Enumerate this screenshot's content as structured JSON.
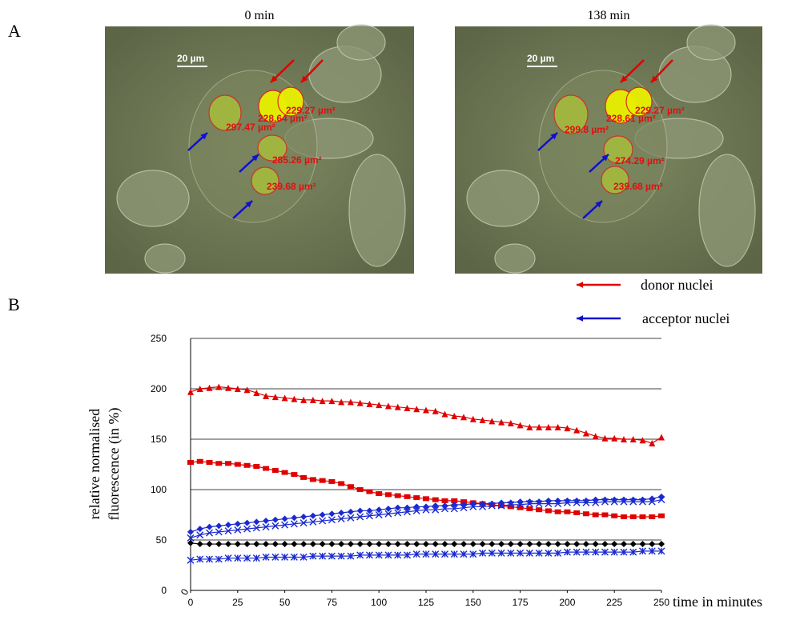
{
  "panel_labels": [
    "A",
    "B"
  ],
  "images": [
    {
      "title": "0 min",
      "scale_bar": "20 µm",
      "area_labels": [
        "228.64 µm²",
        "229.27 µm²",
        "297.47 µm²",
        "285.26 µm²",
        "239.68 µm²"
      ]
    },
    {
      "title": "138 min",
      "scale_bar": "20 µm",
      "area_labels": [
        "228.61 µm²",
        "229.27 µm²",
        "299.8 µm²",
        "274.29 µm²",
        "239.68 µm²"
      ]
    }
  ],
  "legend": [
    {
      "label": "donor nuclei",
      "color": "#e00000"
    },
    {
      "label": "acceptor nuclei",
      "color": "#1010d0"
    }
  ],
  "chart_data": {
    "type": "line",
    "ylabel": [
      "relative normalised",
      "fluorescence (in %)"
    ],
    "xlabel": "time in minutes",
    "origin_label": "0",
    "xlim": [
      0,
      250
    ],
    "xticks": [
      0,
      25,
      50,
      75,
      100,
      125,
      150,
      175,
      200,
      225,
      250
    ],
    "ylim": [
      0,
      250
    ],
    "yticks": [
      0,
      50,
      100,
      150,
      200,
      250
    ],
    "grid": true,
    "x": [
      0,
      5,
      10,
      15,
      20,
      25,
      30,
      35,
      40,
      45,
      50,
      55,
      60,
      65,
      70,
      75,
      80,
      85,
      90,
      95,
      100,
      105,
      110,
      115,
      120,
      125,
      130,
      135,
      140,
      145,
      150,
      155,
      160,
      165,
      170,
      175,
      180,
      185,
      190,
      195,
      200,
      205,
      210,
      215,
      220,
      225,
      230,
      235,
      240,
      245,
      250
    ],
    "series": [
      {
        "color": "#e00000",
        "marker": "triangle",
        "values": [
          197,
          200,
          201,
          202,
          201,
          200,
          199,
          196,
          193,
          192,
          191,
          190,
          189,
          189,
          188,
          188,
          187,
          187,
          186,
          185,
          184,
          183,
          182,
          181,
          180,
          179,
          178,
          175,
          173,
          172,
          170,
          169,
          168,
          167,
          166,
          164,
          162,
          162,
          162,
          162,
          161,
          159,
          156,
          153,
          151,
          151,
          150,
          150,
          149,
          146,
          152
        ]
      },
      {
        "color": "#e00000",
        "marker": "square",
        "values": [
          127,
          128,
          127,
          126,
          126,
          125,
          124,
          123,
          121,
          119,
          117,
          115,
          112,
          110,
          109,
          108,
          106,
          103,
          100,
          98,
          96,
          95,
          94,
          93,
          92,
          91,
          90,
          89,
          89,
          88,
          87,
          86,
          85,
          84,
          83,
          82,
          81,
          80,
          79,
          78,
          78,
          77,
          76,
          75,
          75,
          74,
          73,
          73,
          73,
          73,
          74
        ]
      },
      {
        "color": "#1a2ad0",
        "marker": "diamond",
        "values": [
          58,
          61,
          63,
          64,
          65,
          66,
          67,
          68,
          69,
          70,
          71,
          72,
          73,
          74,
          75,
          76,
          77,
          78,
          79,
          79,
          80,
          81,
          82,
          82,
          83,
          83,
          84,
          84,
          85,
          85,
          86,
          86,
          86,
          87,
          87,
          88,
          88,
          88,
          89,
          89,
          89,
          89,
          89,
          90,
          90,
          90,
          90,
          90,
          90,
          91,
          93
        ]
      },
      {
        "color": "#1a2ad0",
        "marker": "x",
        "values": [
          52,
          55,
          57,
          58,
          59,
          60,
          61,
          62,
          63,
          64,
          65,
          66,
          67,
          68,
          69,
          70,
          71,
          72,
          73,
          74,
          75,
          76,
          77,
          78,
          79,
          80,
          80,
          81,
          81,
          82,
          83,
          83,
          84,
          84,
          85,
          85,
          86,
          86,
          86,
          86,
          87,
          87,
          87,
          87,
          88,
          88,
          88,
          88,
          88,
          88,
          90
        ]
      },
      {
        "color": "#000000",
        "marker": "diamond",
        "values": [
          47,
          46,
          46,
          46,
          46,
          46,
          46,
          46,
          46,
          46,
          46,
          46,
          46,
          46,
          46,
          46,
          46,
          46,
          46,
          46,
          46,
          46,
          46,
          46,
          46,
          46,
          46,
          46,
          46,
          46,
          46,
          46,
          46,
          46,
          46,
          46,
          46,
          46,
          46,
          46,
          46,
          46,
          46,
          46,
          46,
          46,
          46,
          46,
          46,
          46,
          46
        ]
      },
      {
        "color": "#1a2ad0",
        "marker": "asterisk",
        "values": [
          30,
          31,
          31,
          31,
          32,
          32,
          32,
          32,
          33,
          33,
          33,
          33,
          33,
          34,
          34,
          34,
          34,
          34,
          35,
          35,
          35,
          35,
          35,
          35,
          36,
          36,
          36,
          36,
          36,
          36,
          36,
          37,
          37,
          37,
          37,
          37,
          37,
          37,
          37,
          37,
          38,
          38,
          38,
          38,
          38,
          38,
          38,
          38,
          39,
          39,
          39
        ]
      }
    ]
  }
}
